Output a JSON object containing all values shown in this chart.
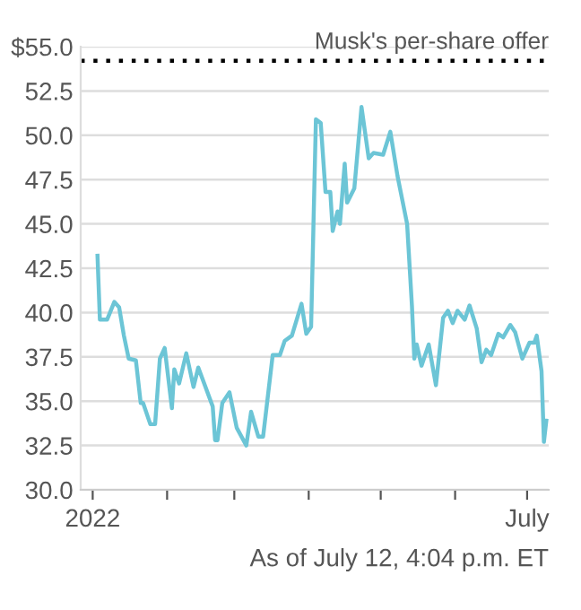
{
  "chart_data": {
    "type": "line",
    "x": [
      "2022-01-03",
      "2022-01-04",
      "2022-01-07",
      "2022-01-10",
      "2022-01-12",
      "2022-01-14",
      "2022-01-16",
      "2022-01-19",
      "2022-01-21",
      "2022-01-22",
      "2022-01-25",
      "2022-01-27",
      "2022-01-29",
      "2022-01-31",
      "2022-02-03",
      "2022-02-04",
      "2022-02-06",
      "2022-02-09",
      "2022-02-12",
      "2022-02-14",
      "2022-02-20",
      "2022-02-21",
      "2022-02-22",
      "2022-02-24",
      "2022-02-27",
      "2022-03-02",
      "2022-03-06",
      "2022-03-08",
      "2022-03-11",
      "2022-03-13",
      "2022-03-17",
      "2022-03-20",
      "2022-03-22",
      "2022-03-25",
      "2022-03-29",
      "2022-03-31",
      "2022-04-02",
      "2022-04-04",
      "2022-04-06",
      "2022-04-08",
      "2022-04-10",
      "2022-04-11",
      "2022-04-13",
      "2022-04-14",
      "2022-04-16",
      "2022-04-17",
      "2022-04-20",
      "2022-04-23",
      "2022-04-26",
      "2022-04-28",
      "2022-05-02",
      "2022-05-05",
      "2022-05-08",
      "2022-05-12",
      "2022-05-14",
      "2022-05-15",
      "2022-05-16",
      "2022-05-18",
      "2022-05-21",
      "2022-05-24",
      "2022-05-27",
      "2022-05-29",
      "2022-05-31",
      "2022-06-02",
      "2022-06-05",
      "2022-06-07",
      "2022-06-10",
      "2022-06-12",
      "2022-06-14",
      "2022-06-16",
      "2022-06-19",
      "2022-06-21",
      "2022-06-24",
      "2022-06-26",
      "2022-06-29",
      "2022-07-02",
      "2022-07-04",
      "2022-07-05",
      "2022-07-07",
      "2022-07-08",
      "2022-07-09"
    ],
    "series": [
      {
        "color": "#6cc5d6",
        "values": [
          43.2,
          39.6,
          39.6,
          40.6,
          40.3,
          38.7,
          37.4,
          37.3,
          34.9,
          34.9,
          33.7,
          33.7,
          37.4,
          38.0,
          34.6,
          36.8,
          36.0,
          37.7,
          35.8,
          36.9,
          34.7,
          32.8,
          32.8,
          34.9,
          35.5,
          33.5,
          32.5,
          34.4,
          33.0,
          33.0,
          37.6,
          37.6,
          38.4,
          38.7,
          40.5,
          38.8,
          39.2,
          50.9,
          50.7,
          46.8,
          46.8,
          44.6,
          45.7,
          45.0,
          48.4,
          46.2,
          47.0,
          51.6,
          48.7,
          49.0,
          48.9,
          50.2,
          47.7,
          45.0,
          40.4,
          37.4,
          38.2,
          37.0,
          38.2,
          35.9,
          39.7,
          40.1,
          39.4,
          40.1,
          39.6,
          40.4,
          39.1,
          37.2,
          37.9,
          37.6,
          38.8,
          38.6,
          39.3,
          38.9,
          37.4,
          38.3,
          38.3,
          38.7,
          36.7,
          32.7,
          33.9
        ]
      }
    ],
    "xlim": [
      "2021-12-27",
      "2022-07-10"
    ],
    "xticks": [
      {
        "value": "2022-01-01",
        "label": "2022"
      },
      {
        "value": "2022-02-01",
        "label": null
      },
      {
        "value": "2022-03-01",
        "label": null
      },
      {
        "value": "2022-04-01",
        "label": null
      },
      {
        "value": "2022-05-01",
        "label": null
      },
      {
        "value": "2022-06-01",
        "label": null
      },
      {
        "value": "2022-07-01",
        "label": "July"
      }
    ],
    "ylim": [
      30,
      55
    ],
    "yticks": [
      {
        "value": 30,
        "label": "30.0"
      },
      {
        "value": 32.5,
        "label": "32.5"
      },
      {
        "value": 35,
        "label": "35.0"
      },
      {
        "value": 37.5,
        "label": "37.5"
      },
      {
        "value": 40,
        "label": "40.0"
      },
      {
        "value": 42.5,
        "label": "42.5"
      },
      {
        "value": 45,
        "label": "45.0"
      },
      {
        "value": 47.5,
        "label": "47.5"
      },
      {
        "value": 50,
        "label": "50.0"
      },
      {
        "value": 52.5,
        "label": "52.5"
      },
      {
        "value": 55,
        "label": "$55.0"
      }
    ],
    "grid": "y",
    "marker": "none",
    "line_style": "solid",
    "ref_lines": [
      {
        "axis": "y",
        "value": 54.2,
        "label": "Musk's per-share offer",
        "color": "#000000",
        "line_style": "dotted"
      }
    ],
    "annotations": [
      "As of July 12, 4:04 p.m. ET"
    ]
  }
}
